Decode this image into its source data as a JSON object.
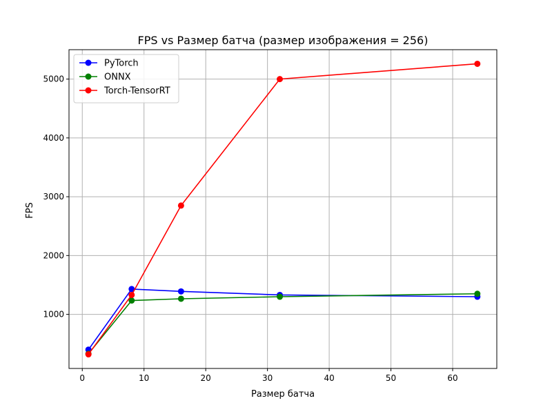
{
  "chart_data": {
    "type": "line",
    "title": "FPS vs Размер батча (размер изображения = 256)",
    "xlabel": "Размер батча",
    "ylabel": "FPS",
    "xlim": [
      -2.15,
      67.15
    ],
    "ylim": [
      80,
      5500
    ],
    "xticks": [
      0,
      10,
      20,
      30,
      40,
      50,
      60
    ],
    "yticks": [
      1000,
      2000,
      3000,
      4000,
      5000
    ],
    "grid": true,
    "legend_position": "top-left",
    "x": [
      1,
      8,
      16,
      32,
      64
    ],
    "series": [
      {
        "name": "PyTorch",
        "color": "#0000ff",
        "values": [
          400,
          1430,
          1390,
          1330,
          1300
        ]
      },
      {
        "name": "ONNX",
        "color": "#008000",
        "values": [
          330,
          1235,
          1265,
          1300,
          1350
        ]
      },
      {
        "name": "Torch-TensorRT",
        "color": "#ff0000",
        "values": [
          320,
          1330,
          2850,
          5000,
          5260
        ]
      }
    ]
  }
}
